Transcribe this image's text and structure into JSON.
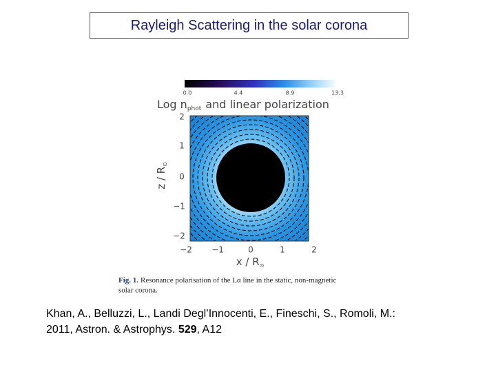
{
  "title": "Rayleigh Scattering in the solar corona",
  "figure": {
    "colorbar_ticks": [
      "0.0",
      "4.4",
      "8.9",
      "13.3"
    ],
    "heading": {
      "main": "Log n",
      "sub": "phot",
      "rest": "and linear polarization"
    },
    "y_ticks": [
      "2",
      "1",
      "0",
      "−1",
      "−2"
    ],
    "x_ticks": [
      "−2",
      "−1",
      "0",
      "1",
      "2"
    ],
    "y_label": {
      "text": "z / R",
      "sub": "⊙"
    },
    "x_label": {
      "text": "x / R",
      "sub": "⊙"
    },
    "caption": {
      "label": "Fig. 1.",
      "lines": [
        "Resonance polarisation of the Lα line in the static, non-magnetic",
        "solar corona."
      ]
    }
  },
  "citation": {
    "line1": "Khan, A., Belluzzi, L., Landi Degl’Innocenti, E.,  Fineschi, S., Romoli, M.:",
    "line2_start": "2011, Astron. & Astrophys. ",
    "volume": "529",
    "line2_end": ", A12"
  }
}
